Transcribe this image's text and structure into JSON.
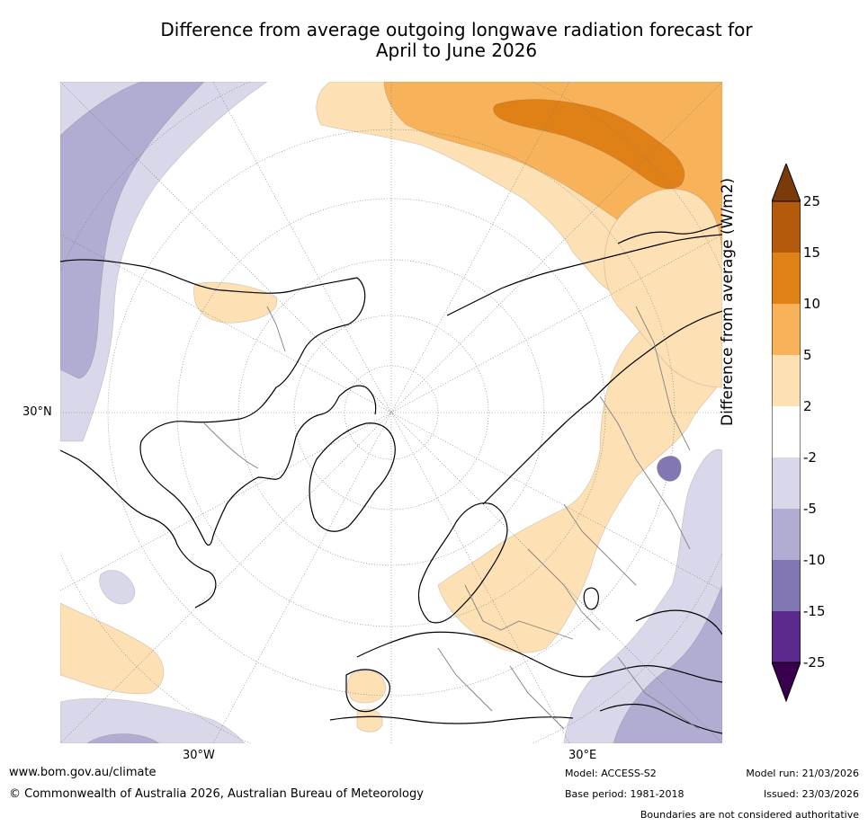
{
  "title_line1": "Difference from average outgoing longwave radiation forecast for",
  "title_line2": "April to June 2026",
  "map": {
    "projection": "north-polar-stereographic",
    "labels": {
      "lat_30n": "30°N",
      "lon_30w": "30°W",
      "lon_30e": "30°E"
    },
    "colors": {
      "pos_2_5": "#fde1b5",
      "pos_5_10": "#f8b35a",
      "pos_10_15": "#e08117",
      "neg_2_5": "#d9d8ea",
      "neg_5_10": "#b0acd2",
      "neg_10_15": "#8277b2",
      "land_outline": "#000000",
      "border": "#808080",
      "grid": "#777777"
    }
  },
  "colorbar": {
    "label": "Difference from average (W/m2)",
    "ticks": [
      "25",
      "15",
      "10",
      "5",
      "2",
      "-2",
      "-5",
      "-10",
      "-15",
      "-25"
    ],
    "colors": [
      "#7a3a0a",
      "#b45a0c",
      "#e08117",
      "#f8b35a",
      "#fde1b5",
      "#ffffff",
      "#d9d8ea",
      "#b0acd2",
      "#8277b2",
      "#5a2a8c",
      "#38004c"
    ]
  },
  "footer": {
    "url": "www.bom.gov.au/climate",
    "copyright": "© Commonwealth of Australia 2026, Australian Bureau of Meteorology",
    "model": "Model: ACCESS-S2",
    "model_run": "Model run: 21/03/2026",
    "base_period": "Base period: 1981-2018",
    "issued": "Issued: 23/03/2026",
    "disclaimer": "Boundaries are not considered authoritative"
  }
}
